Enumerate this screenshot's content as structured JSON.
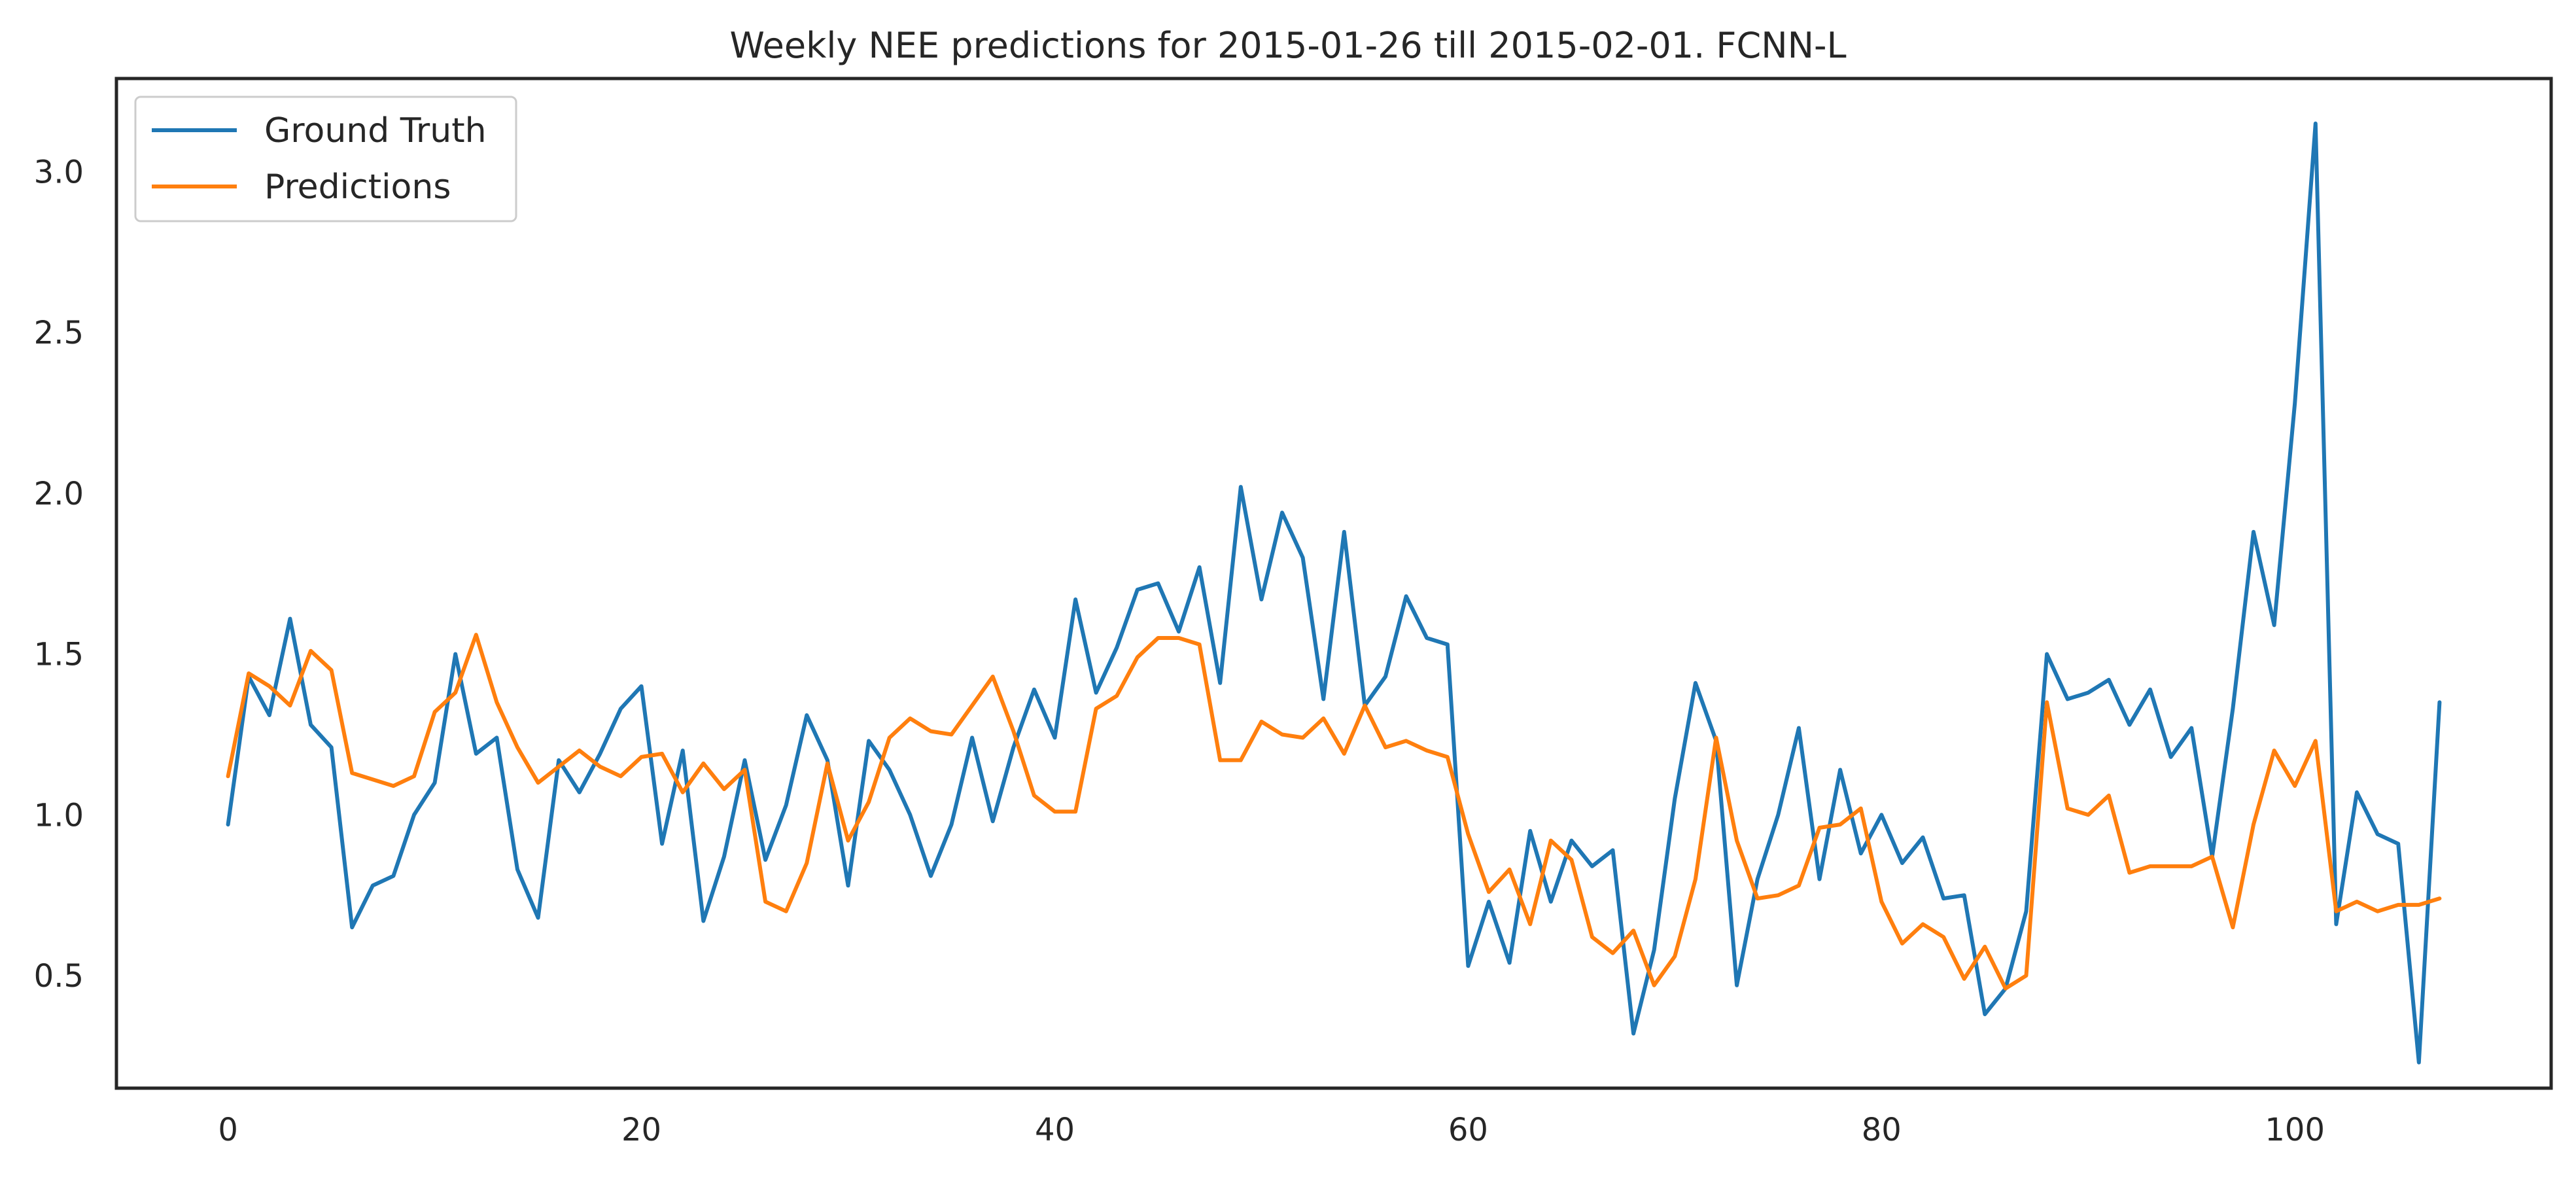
{
  "chart_data": {
    "type": "line",
    "title": "Weekly NEE predictions for 2015-01-26 till 2015-02-01. FCNN-L",
    "xlabel": "",
    "ylabel": "",
    "xlim": [
      -5.4,
      112.4
    ],
    "ylim": [
      0.15,
      3.29
    ],
    "x_ticks": [
      0,
      20,
      40,
      60,
      80,
      100
    ],
    "y_ticks": [
      0.5,
      1.0,
      1.5,
      2.0,
      2.5,
      3.0
    ],
    "x_tick_labels": [
      "0",
      "20",
      "40",
      "60",
      "80",
      "100"
    ],
    "y_tick_labels": [
      "0.5",
      "1.0",
      "1.5",
      "2.0",
      "2.5",
      "3.0"
    ],
    "grid": false,
    "legend": {
      "position": "top-left",
      "entries": [
        "Ground Truth",
        "Predictions"
      ]
    },
    "series": [
      {
        "name": "Ground Truth",
        "color": "#1f77b4",
        "values": [
          0.97,
          1.43,
          1.31,
          1.61,
          1.28,
          1.21,
          0.65,
          0.78,
          0.81,
          1.0,
          1.1,
          1.5,
          1.19,
          1.24,
          0.83,
          0.68,
          1.17,
          1.07,
          1.19,
          1.33,
          1.4,
          0.91,
          1.2,
          0.67,
          0.87,
          1.17,
          0.86,
          1.03,
          1.31,
          1.17,
          0.78,
          1.23,
          1.14,
          1.0,
          0.81,
          0.97,
          1.24,
          0.98,
          1.21,
          1.39,
          1.24,
          1.67,
          1.38,
          1.52,
          1.7,
          1.72,
          1.57,
          1.77,
          1.41,
          2.02,
          1.67,
          1.94,
          1.8,
          1.36,
          1.88,
          1.34,
          1.43,
          1.68,
          1.55,
          1.53,
          0.53,
          0.73,
          0.54,
          0.95,
          0.73,
          0.92,
          0.84,
          0.89,
          0.32,
          0.58,
          1.05,
          1.41,
          1.23,
          0.47,
          0.8,
          1.0,
          1.27,
          0.8,
          1.14,
          0.88,
          1.0,
          0.85,
          0.93,
          0.74,
          0.75,
          0.38,
          0.46,
          0.7,
          1.5,
          1.36,
          1.38,
          1.42,
          1.28,
          1.39,
          1.18,
          1.27,
          0.87,
          1.33,
          1.88,
          1.59,
          2.28,
          3.15,
          0.66,
          1.07,
          0.94,
          0.91,
          0.23,
          1.35
        ]
      },
      {
        "name": "Predictions",
        "color": "#ff7f0e",
        "values": [
          1.12,
          1.44,
          1.4,
          1.34,
          1.51,
          1.45,
          1.13,
          1.11,
          1.09,
          1.12,
          1.32,
          1.38,
          1.56,
          1.35,
          1.21,
          1.1,
          1.15,
          1.2,
          1.15,
          1.12,
          1.18,
          1.19,
          1.07,
          1.16,
          1.08,
          1.14,
          0.73,
          0.7,
          0.85,
          1.16,
          0.92,
          1.04,
          1.24,
          1.3,
          1.26,
          1.25,
          1.34,
          1.43,
          1.26,
          1.06,
          1.01,
          1.01,
          1.33,
          1.37,
          1.49,
          1.55,
          1.55,
          1.53,
          1.17,
          1.17,
          1.29,
          1.25,
          1.24,
          1.3,
          1.19,
          1.34,
          1.21,
          1.23,
          1.2,
          1.18,
          0.94,
          0.76,
          0.83,
          0.66,
          0.92,
          0.86,
          0.62,
          0.57,
          0.64,
          0.47,
          0.56,
          0.8,
          1.24,
          0.92,
          0.74,
          0.75,
          0.78,
          0.96,
          0.97,
          1.02,
          0.73,
          0.6,
          0.66,
          0.62,
          0.49,
          0.59,
          0.46,
          0.5,
          1.35,
          1.02,
          1.0,
          1.06,
          0.82,
          0.84,
          0.84,
          0.84,
          0.87,
          0.65,
          0.97,
          1.2,
          1.09,
          1.23,
          0.7,
          0.73,
          0.7,
          0.72,
          0.72,
          0.74
        ]
      }
    ]
  }
}
